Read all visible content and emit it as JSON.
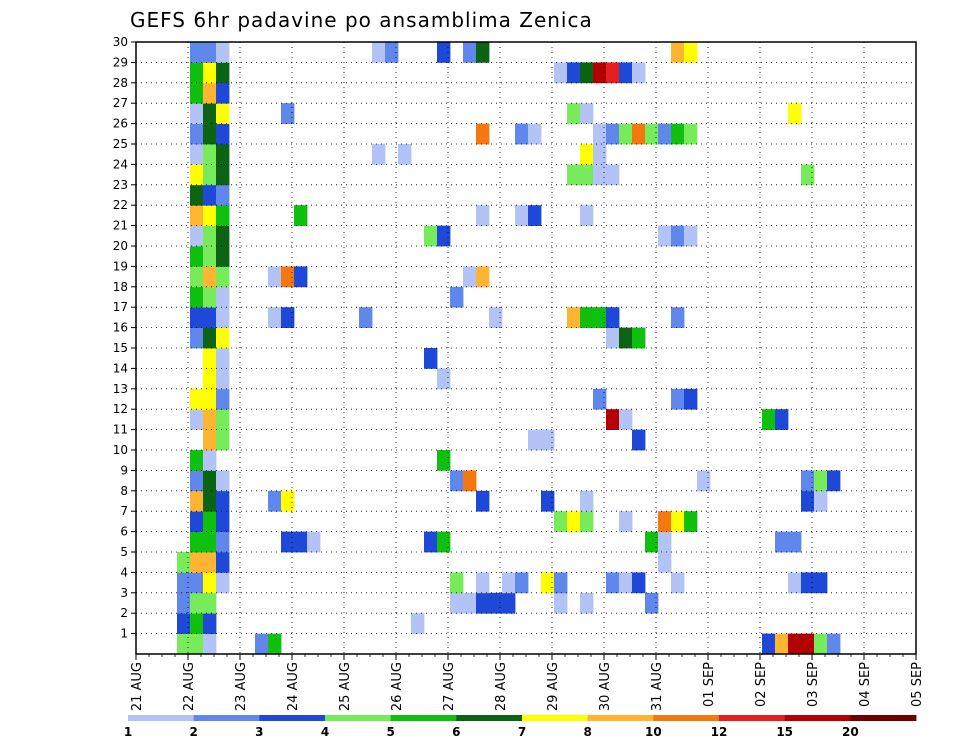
{
  "chart_data": {
    "type": "heatmap",
    "title": "GEFS 6hr padavine po ansamblima Zenica",
    "x_tick_labels": [
      "21 AUG",
      "22 AUG",
      "23 AUG",
      "24 AUG",
      "25 AUG",
      "26 AUG",
      "27 AUG",
      "28 AUG",
      "29 AUG",
      "30 AUG",
      "31 AUG",
      "01 SEP",
      "02 SEP",
      "03 SEP",
      "04 SEP",
      "05 SEP"
    ],
    "y_tick_labels": [
      "1",
      "2",
      "3",
      "4",
      "5",
      "6",
      "7",
      "8",
      "9",
      "10",
      "11",
      "12",
      "13",
      "14",
      "15",
      "16",
      "17",
      "18",
      "19",
      "20",
      "21",
      "22",
      "23",
      "24",
      "25",
      "26",
      "27",
      "28",
      "29",
      "30"
    ],
    "y_range": [
      0,
      30
    ],
    "grid": true,
    "colorbar": {
      "position": "bottom",
      "tick_labels": [
        "1",
        "2",
        "3",
        "4",
        "5",
        "6",
        "7",
        "8",
        "10",
        "12",
        "15",
        "20"
      ],
      "colors": [
        "#b4c3f5",
        "#5f87ec",
        "#1e48d8",
        "#78eb5a",
        "#0fc00f",
        "#0a6414",
        "#ffff00",
        "#ffb432",
        "#f5780f",
        "#e61e1e",
        "#b40000",
        "#6e0000"
      ]
    },
    "ensemble_colors": [
      [
        "#78eb5a",
        "#78eb5a",
        "#b4c3f5",
        "#ffffff"
      ],
      [
        "#1e48d8",
        "#0fc00f",
        "#1e48d8",
        "#ffffff"
      ],
      [
        "#5f87ec",
        "#78eb5a",
        "#78eb5a",
        "#ffffff"
      ],
      [
        "#5f87ec",
        "#5f87ec",
        "#ffff00",
        "#b4c3f5"
      ],
      [
        "#78eb5a",
        "#ffb432",
        "#ffb432",
        "#1e48d8"
      ],
      [
        "#ffffff",
        "#0fc00f",
        "#0fc00f",
        "#5f87ec"
      ],
      [
        "#ffffff",
        "#1e48d8",
        "#0fc00f",
        "#1e48d8"
      ],
      [
        "#ffffff",
        "#ffb432",
        "#0a6414",
        "#1e48d8"
      ],
      [
        "#ffffff",
        "#5f87ec",
        "#0a6414",
        "#b4c3f5"
      ],
      [
        "#ffffff",
        "#0fc00f",
        "#b4c3f5",
        "#ffffff"
      ],
      [
        "#ffffff",
        "#ffffff",
        "#ffb432",
        "#78eb5a"
      ],
      [
        "#ffffff",
        "#b4c3f5",
        "#ffb432",
        "#78eb5a"
      ],
      [
        "#ffffff",
        "#ffff00",
        "#ffff00",
        "#5f87ec"
      ],
      [
        "#ffffff",
        "#ffffff",
        "#ffff00",
        "#b4c3f5"
      ],
      [
        "#ffffff",
        "#ffffff",
        "#ffff00",
        "#b4c3f5"
      ],
      [
        "#ffffff",
        "#5f87ec",
        "#0a6414",
        "#ffff00"
      ],
      [
        "#ffffff",
        "#1e48d8",
        "#1e48d8",
        "#b4c3f5"
      ],
      [
        "#ffffff",
        "#0fc00f",
        "#78eb5a",
        "#b4c3f5"
      ],
      [
        "#ffffff",
        "#78eb5a",
        "#ffb432",
        "#78eb5a"
      ],
      [
        "#ffffff",
        "#0fc00f",
        "#78eb5a",
        "#0a6414"
      ],
      [
        "#ffffff",
        "#b4c3f5",
        "#78eb5a",
        "#0a6414"
      ],
      [
        "#ffffff",
        "#ffb432",
        "#ffff00",
        "#0fc00f"
      ],
      [
        "#ffffff",
        "#0a6414",
        "#1e48d8",
        "#5f87ec"
      ],
      [
        "#ffffff",
        "#ffff00",
        "#78eb5a",
        "#0a6414"
      ],
      [
        "#ffffff",
        "#b4c3f5",
        "#78eb5a",
        "#0a6414"
      ],
      [
        "#ffffff",
        "#5f87ec",
        "#0a6414",
        "#1e48d8"
      ],
      [
        "#ffffff",
        "#b4c3f5",
        "#0a6414",
        "#ffff00"
      ],
      [
        "#ffffff",
        "#0fc00f",
        "#ffb432",
        "#1e48d8"
      ],
      [
        "#ffffff",
        "#0fc00f",
        "#ffff00",
        "#0a6414"
      ],
      [
        "#ffffff",
        "#5f87ec",
        "#5f87ec",
        "#b4c3f5"
      ]
    ],
    "cells": [
      {
        "row": 0,
        "col": 48,
        "color": "#1e48d8"
      },
      {
        "row": 0,
        "col": 49,
        "color": "#ffb432"
      },
      {
        "row": 0,
        "col": 50,
        "color": "#b40000"
      },
      {
        "row": 0,
        "col": 51,
        "color": "#b40000"
      },
      {
        "row": 0,
        "col": 52,
        "color": "#78eb5a"
      },
      {
        "row": 0,
        "col": 53,
        "color": "#5f87ec"
      },
      {
        "row": 0,
        "col": 9,
        "color": "#5f87ec"
      },
      {
        "row": 0,
        "col": 10,
        "color": "#0fc00f"
      },
      {
        "row": 1,
        "col": 21,
        "color": "#b4c3f5"
      },
      {
        "row": 2,
        "col": 24,
        "color": "#b4c3f5"
      },
      {
        "row": 2,
        "col": 25,
        "color": "#b4c3f5"
      },
      {
        "row": 2,
        "col": 26,
        "color": "#1e48d8"
      },
      {
        "row": 2,
        "col": 27,
        "color": "#1e48d8"
      },
      {
        "row": 2,
        "col": 28,
        "color": "#1e48d8"
      },
      {
        "row": 2,
        "col": 32,
        "color": "#b4c3f5"
      },
      {
        "row": 2,
        "col": 34,
        "color": "#b4c3f5"
      },
      {
        "row": 2,
        "col": 39,
        "color": "#5f87ec"
      },
      {
        "row": 3,
        "col": 24,
        "color": "#78eb5a"
      },
      {
        "row": 3,
        "col": 26,
        "color": "#b4c3f5"
      },
      {
        "row": 3,
        "col": 28,
        "color": "#b4c3f5"
      },
      {
        "row": 3,
        "col": 29,
        "color": "#5f87ec"
      },
      {
        "row": 3,
        "col": 31,
        "color": "#ffff00"
      },
      {
        "row": 3,
        "col": 32,
        "color": "#5f87ec"
      },
      {
        "row": 3,
        "col": 36,
        "color": "#5f87ec"
      },
      {
        "row": 3,
        "col": 37,
        "color": "#b4c3f5"
      },
      {
        "row": 3,
        "col": 38,
        "color": "#1e48d8"
      },
      {
        "row": 3,
        "col": 41,
        "color": "#b4c3f5"
      },
      {
        "row": 3,
        "col": 50,
        "color": "#b4c3f5"
      },
      {
        "row": 3,
        "col": 51,
        "color": "#1e48d8"
      },
      {
        "row": 3,
        "col": 52,
        "color": "#1e48d8"
      },
      {
        "row": 4,
        "col": 40,
        "color": "#b4c3f5"
      },
      {
        "row": 5,
        "col": 11,
        "color": "#1e48d8"
      },
      {
        "row": 5,
        "col": 12,
        "color": "#1e48d8"
      },
      {
        "row": 5,
        "col": 13,
        "color": "#b4c3f5"
      },
      {
        "row": 5,
        "col": 22,
        "color": "#1e48d8"
      },
      {
        "row": 5,
        "col": 23,
        "color": "#0fc00f"
      },
      {
        "row": 5,
        "col": 39,
        "color": "#0fc00f"
      },
      {
        "row": 5,
        "col": 40,
        "color": "#b4c3f5"
      },
      {
        "row": 5,
        "col": 49,
        "color": "#5f87ec"
      },
      {
        "row": 5,
        "col": 50,
        "color": "#5f87ec"
      },
      {
        "row": 6,
        "col": 32,
        "color": "#78eb5a"
      },
      {
        "row": 6,
        "col": 33,
        "color": "#ffff00"
      },
      {
        "row": 6,
        "col": 34,
        "color": "#78eb5a"
      },
      {
        "row": 6,
        "col": 37,
        "color": "#b4c3f5"
      },
      {
        "row": 6,
        "col": 40,
        "color": "#f5780f"
      },
      {
        "row": 6,
        "col": 41,
        "color": "#ffff00"
      },
      {
        "row": 6,
        "col": 42,
        "color": "#0fc00f"
      },
      {
        "row": 7,
        "col": 10,
        "color": "#5f87ec"
      },
      {
        "row": 7,
        "col": 11,
        "color": "#ffff00"
      },
      {
        "row": 7,
        "col": 26,
        "color": "#1e48d8"
      },
      {
        "row": 7,
        "col": 31,
        "color": "#1e48d8"
      },
      {
        "row": 7,
        "col": 34,
        "color": "#b4c3f5"
      },
      {
        "row": 7,
        "col": 51,
        "color": "#1e48d8"
      },
      {
        "row": 7,
        "col": 52,
        "color": "#b4c3f5"
      },
      {
        "row": 8,
        "col": 24,
        "color": "#5f87ec"
      },
      {
        "row": 8,
        "col": 25,
        "color": "#f5780f"
      },
      {
        "row": 8,
        "col": 43,
        "color": "#b4c3f5"
      },
      {
        "row": 8,
        "col": 51,
        "color": "#5f87ec"
      },
      {
        "row": 8,
        "col": 52,
        "color": "#78eb5a"
      },
      {
        "row": 8,
        "col": 53,
        "color": "#1e48d8"
      },
      {
        "row": 9,
        "col": 23,
        "color": "#0fc00f"
      },
      {
        "row": 10,
        "col": 30,
        "color": "#b4c3f5"
      },
      {
        "row": 10,
        "col": 31,
        "color": "#b4c3f5"
      },
      {
        "row": 10,
        "col": 38,
        "color": "#1e48d8"
      },
      {
        "row": 11,
        "col": 36,
        "color": "#b40000"
      },
      {
        "row": 11,
        "col": 37,
        "color": "#b4c3f5"
      },
      {
        "row": 11,
        "col": 48,
        "color": "#0fc00f"
      },
      {
        "row": 11,
        "col": 49,
        "color": "#1e48d8"
      },
      {
        "row": 12,
        "col": 35,
        "color": "#5f87ec"
      },
      {
        "row": 12,
        "col": 41,
        "color": "#5f87ec"
      },
      {
        "row": 12,
        "col": 42,
        "color": "#1e48d8"
      },
      {
        "row": 13,
        "col": 23,
        "color": "#b4c3f5"
      },
      {
        "row": 14,
        "col": 22,
        "color": "#1e48d8"
      },
      {
        "row": 15,
        "col": 36,
        "color": "#b4c3f5"
      },
      {
        "row": 15,
        "col": 37,
        "color": "#0a6414"
      },
      {
        "row": 15,
        "col": 38,
        "color": "#0fc00f"
      },
      {
        "row": 16,
        "col": 10,
        "color": "#b4c3f5"
      },
      {
        "row": 16,
        "col": 11,
        "color": "#1e48d8"
      },
      {
        "row": 16,
        "col": 17,
        "color": "#5f87ec"
      },
      {
        "row": 16,
        "col": 27,
        "color": "#b4c3f5"
      },
      {
        "row": 16,
        "col": 33,
        "color": "#ffb432"
      },
      {
        "row": 16,
        "col": 34,
        "color": "#0fc00f"
      },
      {
        "row": 16,
        "col": 35,
        "color": "#0fc00f"
      },
      {
        "row": 16,
        "col": 36,
        "color": "#1e48d8"
      },
      {
        "row": 16,
        "col": 41,
        "color": "#5f87ec"
      },
      {
        "row": 17,
        "col": 24,
        "color": "#5f87ec"
      },
      {
        "row": 18,
        "col": 10,
        "color": "#b4c3f5"
      },
      {
        "row": 18,
        "col": 11,
        "color": "#f5780f"
      },
      {
        "row": 18,
        "col": 12,
        "color": "#1e48d8"
      },
      {
        "row": 18,
        "col": 25,
        "color": "#b4c3f5"
      },
      {
        "row": 18,
        "col": 26,
        "color": "#ffb432"
      },
      {
        "row": 20,
        "col": 22,
        "color": "#78eb5a"
      },
      {
        "row": 20,
        "col": 23,
        "color": "#1e48d8"
      },
      {
        "row": 20,
        "col": 40,
        "color": "#b4c3f5"
      },
      {
        "row": 20,
        "col": 41,
        "color": "#5f87ec"
      },
      {
        "row": 20,
        "col": 42,
        "color": "#b4c3f5"
      },
      {
        "row": 21,
        "col": 12,
        "color": "#0fc00f"
      },
      {
        "row": 21,
        "col": 26,
        "color": "#b4c3f5"
      },
      {
        "row": 21,
        "col": 29,
        "color": "#b4c3f5"
      },
      {
        "row": 21,
        "col": 30,
        "color": "#1e48d8"
      },
      {
        "row": 21,
        "col": 34,
        "color": "#b4c3f5"
      },
      {
        "row": 23,
        "col": 33,
        "color": "#78eb5a"
      },
      {
        "row": 23,
        "col": 34,
        "color": "#78eb5a"
      },
      {
        "row": 23,
        "col": 35,
        "color": "#b4c3f5"
      },
      {
        "row": 23,
        "col": 36,
        "color": "#b4c3f5"
      },
      {
        "row": 23,
        "col": 51,
        "color": "#78eb5a"
      },
      {
        "row": 24,
        "col": 18,
        "color": "#b4c3f5"
      },
      {
        "row": 24,
        "col": 20,
        "color": "#b4c3f5"
      },
      {
        "row": 24,
        "col": 34,
        "color": "#ffff00"
      },
      {
        "row": 24,
        "col": 35,
        "color": "#b4c3f5"
      },
      {
        "row": 25,
        "col": 26,
        "color": "#f5780f"
      },
      {
        "row": 25,
        "col": 29,
        "color": "#5f87ec"
      },
      {
        "row": 25,
        "col": 30,
        "color": "#b4c3f5"
      },
      {
        "row": 25,
        "col": 35,
        "color": "#b4c3f5"
      },
      {
        "row": 25,
        "col": 36,
        "color": "#5f87ec"
      },
      {
        "row": 25,
        "col": 37,
        "color": "#78eb5a"
      },
      {
        "row": 25,
        "col": 38,
        "color": "#f5780f"
      },
      {
        "row": 25,
        "col": 39,
        "color": "#78eb5a"
      },
      {
        "row": 25,
        "col": 40,
        "color": "#5f87ec"
      },
      {
        "row": 25,
        "col": 41,
        "color": "#0fc00f"
      },
      {
        "row": 25,
        "col": 42,
        "color": "#78eb5a"
      },
      {
        "row": 26,
        "col": 11,
        "color": "#5f87ec"
      },
      {
        "row": 26,
        "col": 33,
        "color": "#78eb5a"
      },
      {
        "row": 26,
        "col": 34,
        "color": "#b4c3f5"
      },
      {
        "row": 26,
        "col": 50,
        "color": "#ffff00"
      },
      {
        "row": 28,
        "col": 32,
        "color": "#b4c3f5"
      },
      {
        "row": 28,
        "col": 33,
        "color": "#1e48d8"
      },
      {
        "row": 28,
        "col": 34,
        "color": "#0a6414"
      },
      {
        "row": 28,
        "col": 35,
        "color": "#b40000"
      },
      {
        "row": 28,
        "col": 36,
        "color": "#e61e1e"
      },
      {
        "row": 28,
        "col": 37,
        "color": "#1e48d8"
      },
      {
        "row": 28,
        "col": 38,
        "color": "#b4c3f5"
      },
      {
        "row": 29,
        "col": 18,
        "color": "#b4c3f5"
      },
      {
        "row": 29,
        "col": 19,
        "color": "#5f87ec"
      },
      {
        "row": 29,
        "col": 23,
        "color": "#1e48d8"
      },
      {
        "row": 29,
        "col": 25,
        "color": "#5f87ec"
      },
      {
        "row": 29,
        "col": 26,
        "color": "#0a6414"
      },
      {
        "row": 29,
        "col": 41,
        "color": "#ffb432"
      },
      {
        "row": 29,
        "col": 42,
        "color": "#ffff00"
      }
    ]
  }
}
